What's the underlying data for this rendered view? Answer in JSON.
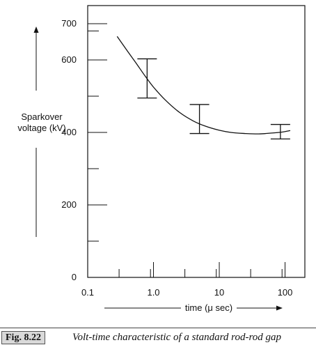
{
  "chart_data": {
    "type": "line",
    "xscale": "log",
    "xlim": [
      0.1,
      200
    ],
    "ylim": [
      0,
      750
    ],
    "x_tick_labels": [
      {
        "value": 0.1,
        "label": "0.1"
      },
      {
        "value": 1,
        "label": "1.0"
      },
      {
        "value": 10,
        "label": "10"
      },
      {
        "value": 100,
        "label": "100"
      }
    ],
    "x_minor_ticks": [
      0.3,
      0.9,
      3,
      9,
      30,
      90
    ],
    "y_tick_labels": [
      {
        "value": 0,
        "label": "0"
      },
      {
        "value": 200,
        "label": "200"
      },
      {
        "value": 400,
        "label": "400"
      },
      {
        "value": 600,
        "label": "600"
      },
      {
        "value": 700,
        "label": "700"
      }
    ],
    "y_minor_ticks": [
      100,
      300,
      500,
      680
    ],
    "xlabel": "time (μ sec)",
    "ylabel_line1": "Sparkover",
    "ylabel_line2": "voltage (kV)",
    "curve": {
      "x": [
        0.28,
        0.4,
        0.55,
        0.75,
        1.0,
        1.5,
        2.5,
        4.0,
        6.0,
        10,
        15,
        25,
        40,
        60,
        90,
        120
      ],
      "y": [
        665,
        625,
        590,
        555,
        525,
        490,
        455,
        432,
        418,
        406,
        400,
        397,
        396,
        398,
        401,
        405
      ]
    },
    "error_bars": [
      {
        "x": 0.8,
        "low": 495,
        "high": 603
      },
      {
        "x": 5,
        "low": 397,
        "high": 477
      },
      {
        "x": 85,
        "low": 382,
        "high": 422
      }
    ]
  },
  "caption": {
    "figure_number": "Fig. 8.22",
    "title": "Volt-time characteristic of a standard rod-rod gap"
  }
}
